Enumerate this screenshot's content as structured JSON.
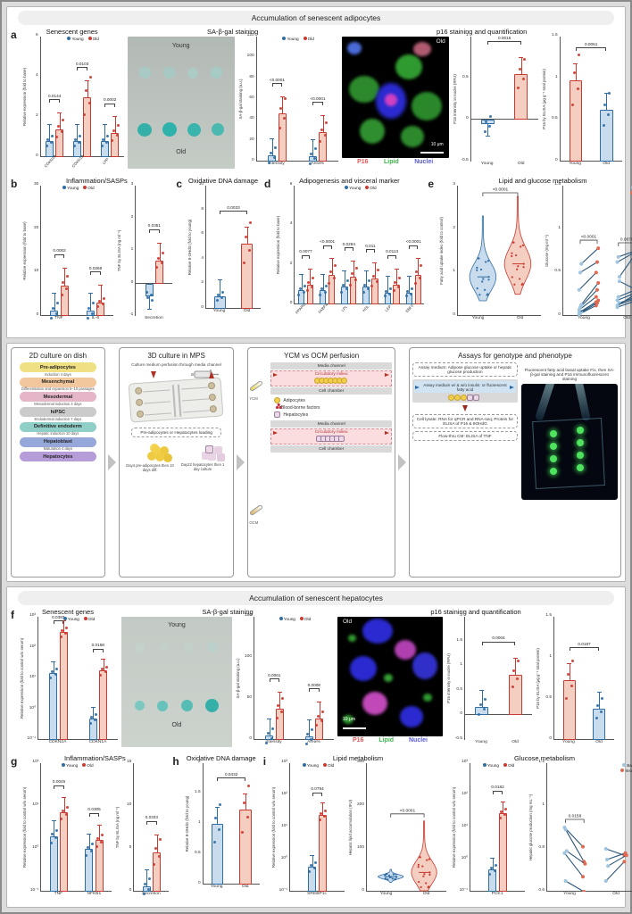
{
  "figure": {
    "section_adipose_title": "Accumulation of senescent adipocytes",
    "section_hepatocyte_title": "Accumulation of senescent hepatocytes"
  },
  "colors": {
    "young": "#2f6ea5",
    "young_fill": "#c9dcee",
    "old": "#cb3a30",
    "old_fill": "#f5cec2",
    "basal": "#9ec4e0",
    "insulin": "#e0694f",
    "pair_line": "#2a5578",
    "blot_dot": "#3eb5ae",
    "micro_p16": "#e05555",
    "micro_lipid": "#3db54a",
    "micro_nuclei": "#5a5ad8"
  },
  "panels": {
    "a": {
      "letter": "a",
      "genes_title": "Senescent genes",
      "sabgal_title": "SA-β-gal staining",
      "p16_title": "p16 staining and quantification"
    },
    "b": {
      "letter": "b",
      "title": "Inflammation/SASPs"
    },
    "c": {
      "letter": "c",
      "title": "Oxidative DNA damage"
    },
    "d": {
      "letter": "d",
      "title": "Adipogenesis and visceral marker"
    },
    "e": {
      "letter": "e",
      "title": "Lipid and glucose metabolism"
    },
    "f": {
      "letter": "f",
      "genes_title": "Senescent genes",
      "sabgal_title": "SA-β-gal staining",
      "p16_title": "p16 staining and quantification"
    },
    "g": {
      "letter": "g",
      "title": "Inflammation/SASPs"
    },
    "h": {
      "letter": "h",
      "title": "Oxidative DNA damage"
    },
    "i": {
      "letter": "i",
      "lipid_title": "Lipid metabolism",
      "glucose_title": "Glucose metabolism"
    }
  },
  "images": {
    "adipose_blot": {
      "young": "Young",
      "old": "Old"
    },
    "hepatocyte_blot": {
      "young": "Young",
      "old": "Old"
    },
    "adipose_micro": {
      "corner": "Old",
      "scale": "10 μm",
      "p16": "P16",
      "lipid": "Lipid",
      "nuclei": "Nuclei"
    },
    "hepatocyte_micro": {
      "corner": "Old",
      "scale": "10 μm",
      "p16": "P16",
      "lipid": "Lipid",
      "nuclei": "Nuclei"
    }
  },
  "diagram": {
    "panel1": {
      "title": "2D culture on dish",
      "steps": [
        {
          "label": "Pre-adipocytes",
          "color": "#efe183"
        },
        {
          "note": "Induction 4 days"
        },
        {
          "label": "Mesenchymal",
          "color": "#f2c79e"
        },
        {
          "note": "Differentiation and expansion 5–10 passages"
        },
        {
          "label": "Mesodermal",
          "color": "#e5b5c8"
        },
        {
          "note": "Mesodermal induction 4 days"
        },
        {
          "label": "hiPSC",
          "color": "#cbcbcb"
        },
        {
          "note": "Endodermal induction 7 days"
        },
        {
          "label": "Definitive endoderm",
          "color": "#90cfc8"
        },
        {
          "note": "Hepatic induction 10 days"
        },
        {
          "label": "Hepatoblast",
          "color": "#96a8da"
        },
        {
          "note": "Maturation 4 days"
        },
        {
          "label": "Hepatocytes",
          "color": "#b69cd8"
        }
      ]
    },
    "panel2": {
      "title": "3D culture in MPS",
      "perfusion_note": "Culture medium perfusion through media channel",
      "loading_note": "Pre-adipocytes or Hepatocytes loading",
      "adipo_caption": "Day4 pre-adipocytes then 10 days diff.",
      "hep_caption": "Day22 hepatocytes then 1 day culture"
    },
    "panel3": {
      "title": "YCM vs OCM perfusion",
      "media_channel": "Media channel",
      "circulatory_milieu": "Circulatory milieu",
      "cell_chamber": "Cell chamber",
      "legend": [
        "Adipocytes",
        "Blood-borne factors",
        "Hepatocytes"
      ],
      "tube_top": "YCM",
      "tube_bottom": "OCM"
    },
    "panel4": {
      "title": "Assays for genotype and phenotype",
      "box1": "Assay medium: Adipose glucose uptake or hepatic glucose production",
      "box2": "Assay medium w/ & w/o insulin: or fluorescent fatty acid",
      "box3": "Cell lysate: RNA for qPCR and RNA-seq; Protein for ELISA of P16 & 8OHdG",
      "box4": "Flow-thru CM: ELISA of TNF",
      "image_caption": "Fluorescent fatty acid basal uptake Fix, then SA-β-gal staining and P16 immunofluorescent staining"
    }
  },
  "chart_data": [
    {
      "id": "a1",
      "type": "bar",
      "xrot": true,
      "ylabel": "Relative expression (fold to base)",
      "ylim": [
        0,
        6
      ],
      "yticks": [
        0,
        2,
        4,
        6
      ],
      "categories": [
        "CDKN2A",
        "CDKN1A",
        "LPP"
      ],
      "series": [
        {
          "name": "Young",
          "key": "young",
          "values": [
            0.8,
            0.8,
            0.8
          ]
        },
        {
          "name": "Old",
          "key": "old",
          "values": [
            1.4,
            3.0,
            1.2
          ]
        }
      ],
      "pvalues": [
        "0.0144",
        "0.0103",
        "0.0002"
      ],
      "legend": true
    },
    {
      "id": "a2",
      "type": "bar",
      "ylabel": "SA-β-gal staining (a.u.)",
      "ylim": [
        0,
        120
      ],
      "yticks": [
        0,
        20,
        40,
        60,
        80,
        100,
        120
      ],
      "categories": [
        "Intensity",
        "Area%"
      ],
      "series": [
        {
          "name": "Young",
          "key": "young",
          "values": [
            6,
            5
          ]
        },
        {
          "name": "Old",
          "key": "old",
          "values": [
            46,
            28
          ]
        }
      ],
      "pvalues": [
        "<0.0001",
        "<0.0001"
      ],
      "legend": true
    },
    {
      "id": "a3",
      "type": "bar2",
      "ylabel": "P16 intensity in nuclei (RFU)",
      "ylim": [
        -0.5,
        1.0
      ],
      "yticks": [
        -0.5,
        0,
        0.5,
        1.0
      ],
      "categories": [
        "Young",
        "Old"
      ],
      "values": [
        -0.05,
        0.55
      ],
      "bar_keys": [
        "young",
        "old"
      ],
      "pvalue": "0.0015"
    },
    {
      "id": "a4",
      "type": "bar2",
      "ylabel": "P16 by ELISA (μg g⁻¹ total protein)",
      "ylim": [
        0,
        1.5
      ],
      "yticks": [
        0,
        0.5,
        1.0,
        1.5
      ],
      "categories": [
        "Young",
        "Old"
      ],
      "values": [
        0.97,
        0.62
      ],
      "bar_keys": [
        "old",
        "young"
      ],
      "pvalue": "0.0061"
    },
    {
      "id": "b1",
      "type": "bar",
      "ylabel": "Relative expression (fold to base)",
      "ylim": [
        0,
        30
      ],
      "yticks": [
        0,
        10,
        20,
        30
      ],
      "categories": [
        "TNF",
        "IL-6"
      ],
      "series": [
        {
          "name": "Young",
          "key": "young",
          "values": [
            1.2,
            1.2
          ]
        },
        {
          "name": "Old",
          "key": "old",
          "values": [
            7,
            3
          ]
        }
      ],
      "pvalues": [
        "0.0002",
        "0.0269"
      ],
      "legend": true
    },
    {
      "id": "b2",
      "type": "bar",
      "ylabel": "TNF by ELISA (ng ml⁻¹)",
      "ylim": [
        -1,
        3
      ],
      "yticks": [
        -1,
        0,
        1,
        2,
        3
      ],
      "categories": [
        "Secretion"
      ],
      "series": [
        {
          "name": "Young",
          "key": "young",
          "values": [
            -0.4
          ]
        },
        {
          "name": "Old",
          "key": "old",
          "values": [
            0.7
          ]
        }
      ],
      "pvalues": [
        "0.0351"
      ]
    },
    {
      "id": "c1",
      "type": "bar2",
      "ylabel": "Relative 8-OHdG (fold to young)",
      "ylim": [
        0,
        10
      ],
      "yticks": [
        0,
        2,
        4,
        6,
        8,
        10
      ],
      "categories": [
        "Young",
        "Old"
      ],
      "values": [
        1.0,
        5.3
      ],
      "bar_keys": [
        "young",
        "old"
      ],
      "pvalue": "0.0033"
    },
    {
      "id": "d1",
      "type": "bar",
      "xrot": true,
      "ylabel": "Relative expression (fold to base)",
      "ylim": [
        0,
        6
      ],
      "yticks": [
        0,
        2,
        4,
        6
      ],
      "categories": [
        "PPARG",
        "FABP4",
        "LPL",
        "HSL",
        "LEP",
        "EBF2"
      ],
      "series": [
        {
          "name": "Young",
          "key": "young",
          "values": [
            0.7,
            0.7,
            0.9,
            0.9,
            0.6,
            0.6
          ]
        },
        {
          "name": "Old",
          "key": "old",
          "values": [
            1.0,
            1.5,
            1.4,
            1.3,
            1.0,
            1.5
          ]
        }
      ],
      "pvalues": [
        "0.0077",
        "<0.0001",
        "0.0294",
        "0.011",
        "0.0113",
        "<0.0001"
      ],
      "legend": true
    },
    {
      "id": "e1",
      "type": "violin",
      "ylabel": "Fatty acid uptake index (fold to control)",
      "ylim": [
        0,
        3
      ],
      "yticks": [
        0,
        1,
        2,
        3
      ],
      "categories": [
        "Young",
        "Old"
      ],
      "dist": [
        {
          "key": "young",
          "median": 0.9,
          "lo": 0.35,
          "hi": 2.3
        },
        {
          "key": "old",
          "median": 1.2,
          "lo": 0.5,
          "hi": 2.75
        }
      ],
      "pvalue": "<0.0001"
    },
    {
      "id": "e2",
      "type": "paired",
      "ylabel": "Glucose (mg ml⁻¹)",
      "ylim": [
        0,
        1.5
      ],
      "yticks": [
        0,
        0.5,
        1.0,
        1.5
      ],
      "legend": [
        "Basal",
        "Insulin"
      ],
      "groups": [
        {
          "name": "Young",
          "pvalue": "<0.0001",
          "pairs": [
            [
              0.02,
              0.12
            ],
            [
              0.03,
              0.15
            ],
            [
              0.05,
              0.18
            ],
            [
              0.07,
              0.22
            ],
            [
              0.1,
              0.3
            ],
            [
              0.13,
              0.38
            ],
            [
              0.3,
              0.5
            ],
            [
              0.5,
              0.62
            ],
            [
              0.6,
              0.78
            ],
            [
              0.04,
              0.16
            ]
          ]
        },
        {
          "name": "Old",
          "pvalue": "0.0078",
          "pairs": [
            [
              0.1,
              0.17
            ],
            [
              0.13,
              0.2
            ],
            [
              0.15,
              0.22
            ],
            [
              0.18,
              0.26
            ],
            [
              0.22,
              0.3
            ],
            [
              0.4,
              0.3
            ],
            [
              0.62,
              0.73
            ],
            [
              0.68,
              0.75
            ],
            [
              0.45,
              0.73
            ],
            [
              0.12,
              0.24
            ]
          ]
        }
      ]
    },
    {
      "id": "f1",
      "type": "bar",
      "log": true,
      "ylabel": "Relative expression (fold to control w/o serum)",
      "ylim": [
        0.1,
        1000
      ],
      "yticks": [
        0.1,
        1,
        10,
        100,
        1000
      ],
      "categories": [
        "CDKN2A",
        "CDKN1A"
      ],
      "series": [
        {
          "name": "Young",
          "key": "young",
          "values": [
            15,
            0.5
          ]
        },
        {
          "name": "Old",
          "key": "old",
          "values": [
            320,
            18
          ]
        }
      ],
      "pvalues": [
        "0.0387",
        "0.0158"
      ],
      "legend": true
    },
    {
      "id": "f2",
      "type": "bar",
      "ylabel": "SA-β-gal staining (a.u.)",
      "ylim": [
        0,
        150
      ],
      "yticks": [
        0,
        50,
        100,
        150
      ],
      "categories": [
        "Intensity",
        "Area%"
      ],
      "series": [
        {
          "name": "Young",
          "key": "young",
          "values": [
            5,
            4
          ]
        },
        {
          "name": "Old",
          "key": "old",
          "values": [
            38,
            26
          ]
        }
      ],
      "pvalues": [
        "0.0061",
        "0.0008"
      ],
      "legend": true
    },
    {
      "id": "f3",
      "type": "bar2",
      "ylabel": "P16 intensity in nuclei (RFU)",
      "ylim": [
        -0.5,
        2.0
      ],
      "yticks": [
        -0.5,
        0,
        0.5,
        1.0,
        1.5,
        2.0
      ],
      "categories": [
        "Young",
        "Old"
      ],
      "values": [
        0.17,
        0.83
      ],
      "bar_keys": [
        "young",
        "old"
      ],
      "pvalue": "0.0004"
    },
    {
      "id": "f4",
      "type": "bar2",
      "ylabel": "P16 by ELISA (μg g⁻¹ total protein)",
      "ylim": [
        0,
        1.5
      ],
      "yticks": [
        0,
        0.5,
        1.0,
        1.5
      ],
      "categories": [
        "Young",
        "Old"
      ],
      "values": [
        0.73,
        0.38
      ],
      "bar_keys": [
        "old",
        "young"
      ],
      "pvalue": "0.0187"
    },
    {
      "id": "g1",
      "type": "bar",
      "log": true,
      "ylabel": "Relative expression (fold to control w/o serum)",
      "ylim": [
        0.1,
        100
      ],
      "yticks": [
        0.1,
        1,
        10,
        100
      ],
      "categories": [
        "TNF",
        "NFKB1"
      ],
      "series": [
        {
          "name": "Young",
          "key": "young",
          "values": [
            2,
            1
          ]
        },
        {
          "name": "Old",
          "key": "old",
          "values": [
            7,
            1.6
          ]
        }
      ],
      "pvalues": [
        "0.0045",
        "0.0305"
      ],
      "legend": true
    },
    {
      "id": "g2",
      "type": "bar",
      "ylabel": "TNF by ELISA (ng ml⁻¹)",
      "ylim": [
        0,
        15
      ],
      "yticks": [
        0,
        5,
        10,
        15
      ],
      "categories": [
        "Secretion"
      ],
      "series": [
        {
          "name": "Young",
          "key": "young",
          "values": [
            0.6
          ]
        },
        {
          "name": "Old",
          "key": "old",
          "values": [
            4.6
          ]
        }
      ],
      "pvalues": [
        "0.0333"
      ]
    },
    {
      "id": "h1",
      "type": "bar2",
      "ylabel": "Relative 8-OHdG (fold to young)",
      "ylim": [
        0,
        2.0
      ],
      "yticks": [
        0,
        0.5,
        1.0,
        1.5,
        2.0
      ],
      "categories": [
        "Young",
        "Old"
      ],
      "values": [
        1.0,
        1.23
      ],
      "bar_keys": [
        "young",
        "old"
      ],
      "pvalue": "0.0432"
    },
    {
      "id": "i1",
      "type": "bar",
      "log": true,
      "ylabel": "Relative expression (fold to control w/o serum)",
      "ylim": [
        0.1,
        1000
      ],
      "yticks": [
        0.1,
        1,
        10,
        100,
        1000
      ],
      "categories": [
        "SREBP1c"
      ],
      "series": [
        {
          "name": "Young",
          "key": "young",
          "values": [
            0.6
          ]
        },
        {
          "name": "Old",
          "key": "old",
          "values": [
            25
          ]
        }
      ],
      "pvalues": [
        "0.0794"
      ],
      "legend": true
    },
    {
      "id": "i2",
      "type": "violin",
      "ylabel": "Hepatic lipid accumulation (IFU)",
      "ylim": [
        0,
        300
      ],
      "yticks": [
        0,
        100,
        200,
        300
      ],
      "categories": [
        "Young",
        "Old"
      ],
      "dist": [
        {
          "key": "young",
          "median": 35,
          "lo": 22,
          "hi": 52
        },
        {
          "key": "old",
          "median": 45,
          "lo": 2,
          "hi": 165
        }
      ],
      "pvalue": "<0.0001"
    },
    {
      "id": "i3",
      "type": "bar",
      "log": true,
      "ylabel": "Relative expression (fold to control w/o serum)",
      "ylim": [
        0.1,
        1000
      ],
      "yticks": [
        0.1,
        1,
        10,
        100,
        1000
      ],
      "categories": [
        "PCK1"
      ],
      "series": [
        {
          "name": "Young",
          "key": "young",
          "values": [
            0.5
          ]
        },
        {
          "name": "Old",
          "key": "old",
          "values": [
            28
          ]
        }
      ],
      "pvalues": [
        "0.0182"
      ],
      "legend": true
    },
    {
      "id": "i4",
      "type": "paired",
      "ylabel": "Hepatic glucose production (mg mL⁻¹)",
      "ylim": [
        0.6,
        1.2
      ],
      "yticks": [
        0.6,
        0.8,
        1.0,
        1.2
      ],
      "legend": [
        "Basal",
        "Insulin"
      ],
      "groups": [
        {
          "name": "Young",
          "pvalue": "0.0158",
          "pairs": [
            [
              0.9,
              0.81
            ],
            [
              0.89,
              0.74
            ],
            [
              0.79,
              0.73
            ],
            [
              0.78,
              0.67
            ],
            [
              0.65,
              0.6
            ]
          ]
        },
        {
          "name": "Old",
          "pvalue": null,
          "pairs": [
            [
              0.8,
              0.77
            ],
            [
              0.75,
              0.78
            ],
            [
              0.72,
              0.77
            ],
            [
              0.65,
              0.74
            ]
          ]
        }
      ]
    }
  ]
}
